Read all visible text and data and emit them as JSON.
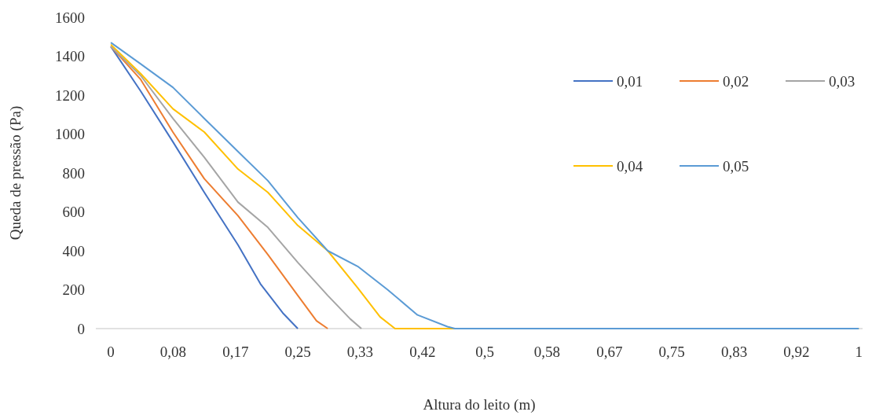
{
  "chart_data": {
    "type": "line",
    "xlabel": "Altura do leito (m)",
    "ylabel": "Queda de pressão (Pa)",
    "xlim": [
      -0.02,
      1.005
    ],
    "ylim": [
      0,
      1600
    ],
    "xticks": [
      {
        "value": 0,
        "label": "0"
      },
      {
        "value": 0.0833,
        "label": "0,08"
      },
      {
        "value": 0.1667,
        "label": "0,17"
      },
      {
        "value": 0.25,
        "label": "0,25"
      },
      {
        "value": 0.3333,
        "label": "0,33"
      },
      {
        "value": 0.4167,
        "label": "0,42"
      },
      {
        "value": 0.5,
        "label": "0,5"
      },
      {
        "value": 0.5833,
        "label": "0,58"
      },
      {
        "value": 0.6667,
        "label": "0,67"
      },
      {
        "value": 0.75,
        "label": "0,75"
      },
      {
        "value": 0.8333,
        "label": "0,83"
      },
      {
        "value": 0.9167,
        "label": "0,92"
      },
      {
        "value": 1,
        "label": "1"
      }
    ],
    "yticks": [
      0,
      200,
      400,
      600,
      800,
      1000,
      1200,
      1400,
      1600
    ],
    "grid": false,
    "legend": "top right",
    "marker": "none",
    "line_style": "solid",
    "series": [
      {
        "name": "0,01",
        "color": "#4472c4",
        "x": [
          0,
          0.04,
          0.083,
          0.125,
          0.17,
          0.2,
          0.23,
          0.25
        ],
        "values": [
          1450,
          1220,
          960,
          700,
          430,
          230,
          80,
          0
        ]
      },
      {
        "name": "0,02",
        "color": "#ed7d31",
        "x": [
          0,
          0.04,
          0.083,
          0.125,
          0.17,
          0.21,
          0.25,
          0.275,
          0.29
        ],
        "values": [
          1450,
          1280,
          1010,
          770,
          580,
          380,
          170,
          40,
          0
        ]
      },
      {
        "name": "0,03",
        "color": "#a5a5a5",
        "x": [
          0,
          0.04,
          0.083,
          0.125,
          0.17,
          0.21,
          0.25,
          0.29,
          0.32,
          0.335
        ],
        "values": [
          1450,
          1300,
          1080,
          880,
          650,
          520,
          340,
          170,
          50,
          0
        ]
      },
      {
        "name": "0,04",
        "color": "#ffc000",
        "x": [
          0,
          0.04,
          0.083,
          0.125,
          0.17,
          0.21,
          0.25,
          0.29,
          0.33,
          0.36,
          0.38,
          1
        ],
        "values": [
          1460,
          1310,
          1130,
          1010,
          820,
          700,
          530,
          400,
          210,
          60,
          0,
          0
        ]
      },
      {
        "name": "0,05",
        "color": "#5b9bd5",
        "x": [
          0,
          0.04,
          0.083,
          0.125,
          0.17,
          0.21,
          0.25,
          0.29,
          0.33,
          0.37,
          0.41,
          0.45,
          0.46,
          1
        ],
        "values": [
          1470,
          1360,
          1240,
          1080,
          910,
          760,
          570,
          400,
          320,
          200,
          70,
          10,
          0,
          0
        ]
      }
    ]
  }
}
